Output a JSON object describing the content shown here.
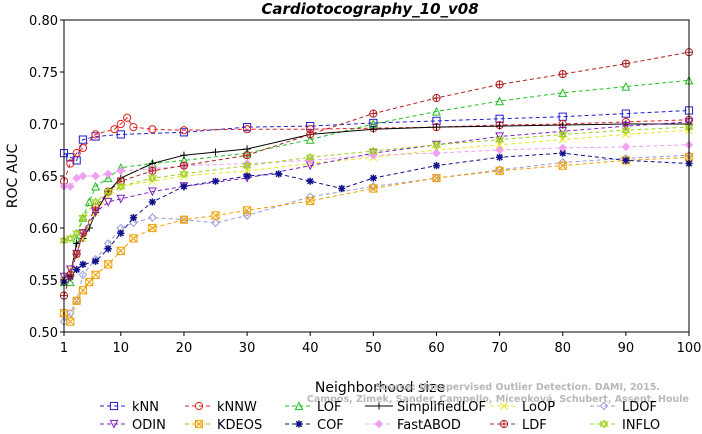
{
  "chart_data": {
    "type": "line",
    "title": "Cardiotocography_10_v08",
    "xlabel": "Neighborhood size",
    "ylabel": "ROC AUC",
    "xlim": [
      1,
      100
    ],
    "ylim": [
      0.5,
      0.8
    ],
    "xticks": [
      1,
      10,
      20,
      30,
      40,
      50,
      60,
      70,
      80,
      90,
      100
    ],
    "yticks": [
      0.5,
      0.55,
      0.6,
      0.65,
      0.7,
      0.75,
      0.8
    ],
    "watermark": [
      "Source: Unsupervised Outlier Detection. DAMI, 2015.",
      "Campos, Zimek, Sander, Campello, Micenková, Schubert, Assent, Houle"
    ],
    "series": [
      {
        "name": "kNN",
        "color": "#1f1fd0",
        "marker": "square",
        "dash": "4,3",
        "x": [
          1,
          2,
          3,
          4,
          6,
          10,
          20,
          30,
          40,
          50,
          60,
          70,
          80,
          90,
          100
        ],
        "y": [
          0.672,
          0.668,
          0.665,
          0.685,
          0.688,
          0.69,
          0.692,
          0.697,
          0.698,
          0.701,
          0.703,
          0.705,
          0.707,
          0.71,
          0.713
        ]
      },
      {
        "name": "kNNW",
        "color": "#e02020",
        "marker": "circle",
        "dash": "4,3",
        "x": [
          1,
          2,
          3,
          4,
          6,
          9,
          10,
          11,
          12,
          15,
          20,
          30,
          40,
          50,
          60,
          70,
          80,
          90,
          100
        ],
        "y": [
          0.645,
          0.662,
          0.672,
          0.677,
          0.69,
          0.695,
          0.7,
          0.706,
          0.697,
          0.695,
          0.694,
          0.695,
          0.695,
          0.696,
          0.697,
          0.699,
          0.7,
          0.702,
          0.704
        ]
      },
      {
        "name": "LOF",
        "color": "#20c020",
        "marker": "triangle",
        "dash": "4,3",
        "x": [
          1,
          2,
          3,
          4,
          5,
          6,
          8,
          10,
          15,
          20,
          30,
          40,
          50,
          60,
          70,
          80,
          90,
          100
        ],
        "y": [
          0.548,
          0.548,
          0.59,
          0.61,
          0.625,
          0.64,
          0.648,
          0.658,
          0.662,
          0.665,
          0.672,
          0.685,
          0.7,
          0.712,
          0.722,
          0.73,
          0.736,
          0.742
        ]
      },
      {
        "name": "SimplifiedLOF",
        "color": "#000000",
        "marker": "plus",
        "dash": "",
        "x": [
          1,
          2,
          3,
          4,
          5,
          6,
          8,
          10,
          15,
          20,
          25,
          30,
          40,
          50,
          60,
          70,
          80,
          90,
          100
        ],
        "y": [
          0.552,
          0.555,
          0.585,
          0.59,
          0.6,
          0.615,
          0.635,
          0.648,
          0.662,
          0.67,
          0.673,
          0.676,
          0.69,
          0.695,
          0.697,
          0.698,
          0.699,
          0.7,
          0.7
        ]
      },
      {
        "name": "LoOP",
        "color": "#e8e820",
        "marker": "x",
        "dash": "4,3",
        "x": [
          1,
          2,
          3,
          4,
          6,
          8,
          10,
          15,
          20,
          30,
          40,
          50,
          60,
          70,
          80,
          90,
          100
        ],
        "y": [
          0.55,
          0.56,
          0.575,
          0.59,
          0.615,
          0.63,
          0.64,
          0.645,
          0.65,
          0.655,
          0.662,
          0.668,
          0.675,
          0.68,
          0.685,
          0.69,
          0.694
        ]
      },
      {
        "name": "LDOF",
        "color": "#9a9ad8",
        "marker": "diamond",
        "dash": "4,3",
        "x": [
          1,
          2,
          3,
          4,
          6,
          8,
          10,
          12,
          15,
          20,
          25,
          30,
          40,
          50,
          60,
          70,
          80,
          90,
          100
        ],
        "y": [
          0.51,
          0.518,
          0.53,
          0.555,
          0.57,
          0.585,
          0.6,
          0.605,
          0.61,
          0.608,
          0.605,
          0.612,
          0.63,
          0.64,
          0.648,
          0.656,
          0.663,
          0.667,
          0.67
        ]
      },
      {
        "name": "ODIN",
        "color": "#8020c0",
        "marker": "triangle-down",
        "dash": "4,3",
        "x": [
          1,
          2,
          3,
          4,
          6,
          8,
          10,
          15,
          20,
          30,
          40,
          50,
          60,
          70,
          80,
          90,
          100
        ],
        "y": [
          0.553,
          0.56,
          0.575,
          0.595,
          0.615,
          0.625,
          0.628,
          0.635,
          0.64,
          0.648,
          0.66,
          0.672,
          0.68,
          0.688,
          0.693,
          0.698,
          0.702
        ]
      },
      {
        "name": "KDEOS",
        "color": "#f0a000",
        "marker": "square-x",
        "dash": "4,3",
        "x": [
          1,
          2,
          3,
          4,
          5,
          6,
          8,
          10,
          12,
          15,
          20,
          25,
          30,
          40,
          50,
          60,
          70,
          80,
          90,
          100
        ],
        "y": [
          0.518,
          0.51,
          0.53,
          0.54,
          0.548,
          0.555,
          0.565,
          0.578,
          0.59,
          0.6,
          0.608,
          0.612,
          0.617,
          0.626,
          0.638,
          0.648,
          0.655,
          0.66,
          0.665,
          0.668
        ]
      },
      {
        "name": "COF",
        "color": "#10108a",
        "marker": "asterisk",
        "dash": "4,3",
        "x": [
          1,
          2,
          3,
          4,
          6,
          8,
          10,
          12,
          15,
          20,
          25,
          30,
          35,
          40,
          45,
          50,
          60,
          70,
          80,
          90,
          100
        ],
        "y": [
          0.548,
          0.553,
          0.56,
          0.565,
          0.568,
          0.58,
          0.595,
          0.61,
          0.625,
          0.64,
          0.645,
          0.65,
          0.652,
          0.645,
          0.638,
          0.648,
          0.66,
          0.668,
          0.672,
          0.665,
          0.662
        ]
      },
      {
        "name": "FastABOD",
        "color": "#f0a0f0",
        "marker": "diamond-filled",
        "dash": "4,3",
        "x": [
          1,
          2,
          3,
          4,
          6,
          8,
          10,
          15,
          20,
          30,
          40,
          50,
          60,
          70,
          80,
          90,
          100
        ],
        "y": [
          0.64,
          0.64,
          0.648,
          0.65,
          0.65,
          0.652,
          0.655,
          0.657,
          0.66,
          0.662,
          0.665,
          0.67,
          0.672,
          0.675,
          0.677,
          0.678,
          0.68
        ]
      },
      {
        "name": "LDF",
        "color": "#b02020",
        "marker": "circle-plus",
        "dash": "4,3",
        "x": [
          1,
          2,
          3,
          4,
          6,
          8,
          10,
          15,
          20,
          30,
          40,
          50,
          60,
          70,
          80,
          90,
          100
        ],
        "y": [
          0.535,
          0.555,
          0.575,
          0.595,
          0.62,
          0.635,
          0.645,
          0.655,
          0.66,
          0.67,
          0.69,
          0.71,
          0.725,
          0.738,
          0.748,
          0.758,
          0.769
        ]
      },
      {
        "name": "INFLO",
        "color": "#a0d020",
        "marker": "star",
        "dash": "4,3",
        "x": [
          1,
          2,
          3,
          4,
          6,
          8,
          10,
          15,
          20,
          30,
          40,
          50,
          60,
          70,
          80,
          90,
          100
        ],
        "y": [
          0.588,
          0.59,
          0.595,
          0.61,
          0.625,
          0.635,
          0.64,
          0.648,
          0.652,
          0.66,
          0.668,
          0.674,
          0.68,
          0.685,
          0.69,
          0.694,
          0.697
        ]
      }
    ]
  }
}
